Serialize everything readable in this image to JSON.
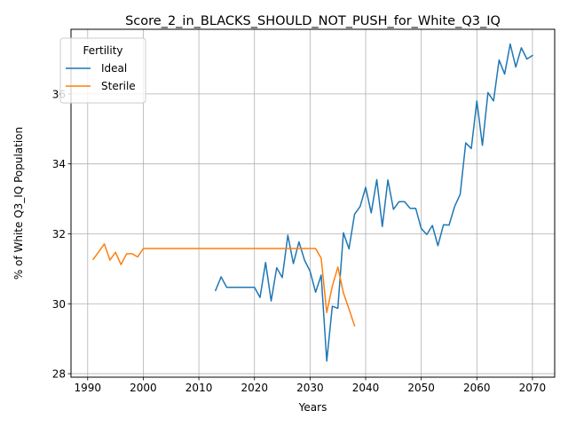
{
  "chart_data": {
    "type": "line",
    "title": "Score_2_in_BLACKS_SHOULD_NOT_PUSH_for_White_Q3_IQ",
    "xlabel": "Years",
    "ylabel": "% of White Q3_IQ Population",
    "xlim": [
      1987,
      2074
    ],
    "ylim": [
      27.9,
      37.85
    ],
    "xticks": [
      1990,
      2000,
      2010,
      2020,
      2030,
      2040,
      2050,
      2060,
      2070
    ],
    "yticks": [
      28,
      30,
      32,
      34,
      36
    ],
    "grid": true,
    "legend": {
      "title": "Fertility",
      "placement": "upper-left"
    },
    "series": [
      {
        "name": "Ideal",
        "color": "#1f77b4",
        "x": [
          2013,
          2014,
          2015,
          2016,
          2017,
          2018,
          2019,
          2020,
          2021,
          2022,
          2023,
          2024,
          2025,
          2026,
          2027,
          2028,
          2029,
          2030,
          2031,
          2032,
          2033,
          2034,
          2035,
          2036,
          2037,
          2038,
          2039,
          2040,
          2041,
          2042,
          2043,
          2044,
          2045,
          2046,
          2047,
          2048,
          2049,
          2050,
          2051,
          2052,
          2053,
          2054,
          2055,
          2056,
          2057,
          2058,
          2059,
          2060,
          2061,
          2062,
          2063,
          2064,
          2065,
          2066,
          2067,
          2068,
          2069,
          2070
        ],
        "y": [
          30.38,
          30.77,
          30.47,
          30.47,
          30.47,
          30.47,
          30.47,
          30.47,
          30.18,
          31.18,
          30.08,
          31.03,
          30.75,
          31.96,
          31.15,
          31.77,
          31.25,
          30.93,
          30.33,
          30.82,
          28.36,
          29.93,
          29.87,
          32.03,
          31.57,
          32.56,
          32.78,
          33.33,
          32.6,
          33.55,
          32.21,
          33.54,
          32.7,
          32.92,
          32.92,
          32.73,
          32.73,
          32.15,
          31.98,
          32.24,
          31.66,
          32.26,
          32.25,
          32.78,
          33.13,
          34.6,
          34.44,
          35.8,
          34.53,
          36.04,
          35.8,
          36.97,
          36.57,
          37.43,
          36.77,
          37.32,
          37.0,
          37.1
        ]
      },
      {
        "name": "Sterile",
        "color": "#ff7f0e",
        "x": [
          1991,
          1992,
          1993,
          1994,
          1995,
          1996,
          1997,
          1998,
          1999,
          2000,
          2001,
          2002,
          2003,
          2004,
          2005,
          2006,
          2007,
          2008,
          2009,
          2010,
          2011,
          2012,
          2013,
          2014,
          2015,
          2016,
          2017,
          2018,
          2019,
          2020,
          2021,
          2022,
          2023,
          2024,
          2025,
          2026,
          2027,
          2028,
          2029,
          2030,
          2031,
          2032,
          2033,
          2034,
          2035,
          2036,
          2037,
          2038
        ],
        "y": [
          31.27,
          31.49,
          31.71,
          31.25,
          31.47,
          31.12,
          31.43,
          31.43,
          31.34,
          31.58,
          31.58,
          31.58,
          31.58,
          31.58,
          31.58,
          31.58,
          31.58,
          31.58,
          31.58,
          31.58,
          31.58,
          31.58,
          31.58,
          31.58,
          31.58,
          31.58,
          31.58,
          31.58,
          31.58,
          31.58,
          31.58,
          31.58,
          31.58,
          31.58,
          31.58,
          31.58,
          31.58,
          31.58,
          31.58,
          31.58,
          31.58,
          31.3,
          29.75,
          30.5,
          31.05,
          30.31,
          29.85,
          29.37
        ]
      }
    ]
  }
}
